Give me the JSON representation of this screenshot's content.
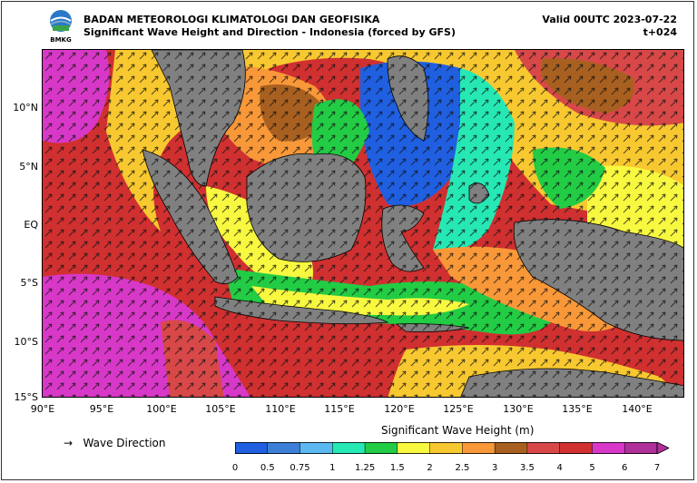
{
  "header": {
    "logo_text": "BMKG",
    "organization": "BADAN METEOROLOGI KLIMATOLOGI DAN GEOFISIKA",
    "subtitle": "Significant Wave Height and Direction - Indonesia (forced by GFS)",
    "valid": "Valid 00UTC 2023-07-22",
    "lead_time": "t+024"
  },
  "map": {
    "latitude_labels": [
      "10°N",
      "5°N",
      "EQ",
      "5°S",
      "10°S",
      "15°S"
    ],
    "longitude_labels": [
      "90°E",
      "95°E",
      "100°E",
      "105°E",
      "110°E",
      "115°E",
      "120°E",
      "125°E",
      "130°E",
      "135°E",
      "140°E"
    ],
    "land_color": "#808080",
    "coastline_color": "#000000"
  },
  "legend": {
    "arrow_symbol": "→",
    "label": "Wave Direction"
  },
  "colorbar": {
    "title": "Significant Wave Height (m)",
    "ticks": [
      "0",
      "0.5",
      "0.75",
      "1",
      "1.25",
      "1.5",
      "2",
      "2.5",
      "3",
      "3.5",
      "4",
      "5",
      "6",
      "7"
    ],
    "colors": [
      "#1f5fe0",
      "#3d7fd6",
      "#5cb8f0",
      "#26e8b4",
      "#22cc44",
      "#f8f840",
      "#f8c830",
      "#f89838",
      "#a86020",
      "#d84848",
      "#d03030",
      "#d838c8",
      "#b0309a"
    ]
  }
}
